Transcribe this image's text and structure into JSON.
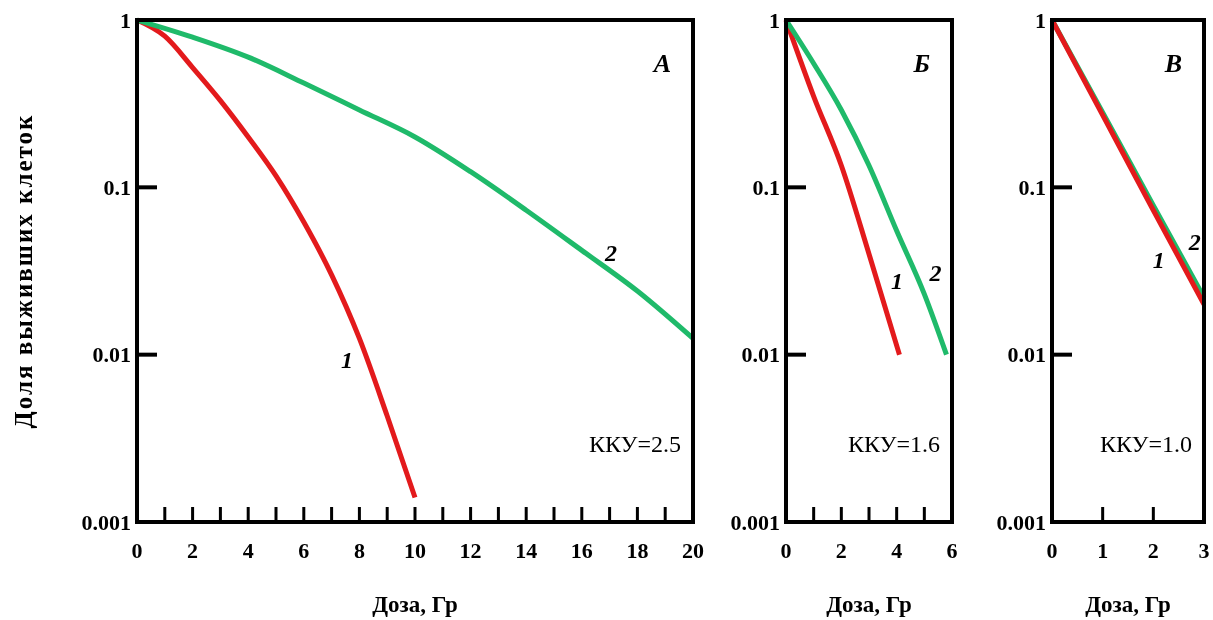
{
  "chart_data": [
    {
      "type": "line",
      "ylabel": "Доля выживших клеток",
      "xlabel": "Доза, Гр",
      "log": "y",
      "line_style": "solid",
      "xlim": [
        0,
        20
      ],
      "ylim": [
        0.001,
        1
      ],
      "xticks": [
        0,
        {
          "value": 1,
          "label": null
        },
        2,
        {
          "value": 3,
          "label": null
        },
        4,
        {
          "value": 5,
          "label": null
        },
        6,
        {
          "value": 7,
          "label": null
        },
        8,
        {
          "value": 9,
          "label": null
        },
        10,
        {
          "value": 11,
          "label": null
        },
        12,
        {
          "value": 13,
          "label": null
        },
        14,
        {
          "value": 15,
          "label": null
        },
        16,
        {
          "value": 17,
          "label": null
        },
        18,
        {
          "value": 19,
          "label": null
        },
        20
      ],
      "yticks": [
        0.001,
        0.01,
        0.1,
        1
      ],
      "series": [
        {
          "name": "1",
          "color": "#e31a1c",
          "x": [
            0,
            1,
            2,
            3,
            4,
            5,
            6,
            7,
            8,
            9,
            10
          ],
          "values": [
            1,
            0.8,
            0.52,
            0.33,
            0.2,
            0.117,
            0.062,
            0.03,
            0.0125,
            0.0043,
            0.0014
          ]
        },
        {
          "name": "2",
          "color": "#1fba6a",
          "x": [
            0,
            2,
            4,
            6,
            8,
            10,
            12,
            14,
            16,
            18,
            20
          ],
          "values": [
            1,
            0.79,
            0.6,
            0.42,
            0.29,
            0.2,
            0.124,
            0.073,
            0.042,
            0.024,
            0.0125
          ]
        }
      ],
      "annotations": [
        "А",
        "ККУ=2.5"
      ]
    },
    {
      "type": "line",
      "xlabel": "Доза, Гр",
      "log": "y",
      "line_style": "solid",
      "xlim": [
        0,
        6
      ],
      "ylim": [
        0.001,
        1
      ],
      "xticks": [
        0,
        {
          "value": 1,
          "label": null
        },
        2,
        {
          "value": 3,
          "label": null
        },
        4,
        {
          "value": 5,
          "label": null
        },
        6
      ],
      "yticks": [
        0.001,
        0.01,
        0.1,
        1
      ],
      "series": [
        {
          "name": "1",
          "color": "#e31a1c",
          "x": [
            0,
            1,
            2,
            3,
            4.1
          ],
          "values": [
            1,
            0.35,
            0.135,
            0.04,
            0.01
          ]
        },
        {
          "name": "2",
          "color": "#1fba6a",
          "x": [
            0,
            1,
            2,
            3,
            4,
            5,
            5.8
          ],
          "values": [
            1,
            0.55,
            0.29,
            0.135,
            0.055,
            0.023,
            0.01
          ]
        }
      ],
      "annotations": [
        "Б",
        "ККУ=1.6"
      ]
    },
    {
      "type": "line",
      "xlabel": "Доза, Гр",
      "log": "y",
      "line_style": "solid",
      "xlim": [
        0,
        3
      ],
      "ylim": [
        0.001,
        1
      ],
      "xticks": [
        0,
        1,
        2,
        3
      ],
      "yticks": [
        0.001,
        0.01,
        0.1,
        1
      ],
      "series": [
        {
          "name": "2",
          "color": "#1fba6a",
          "x": [
            0,
            1,
            2,
            3
          ],
          "values": [
            1,
            0.28,
            0.078,
            0.022
          ]
        },
        {
          "name": "1",
          "color": "#e31a1c",
          "x": [
            0,
            1,
            2,
            3
          ],
          "values": [
            1,
            0.27,
            0.073,
            0.02
          ]
        }
      ],
      "annotations": [
        "В",
        "ККУ=1.0"
      ]
    }
  ]
}
